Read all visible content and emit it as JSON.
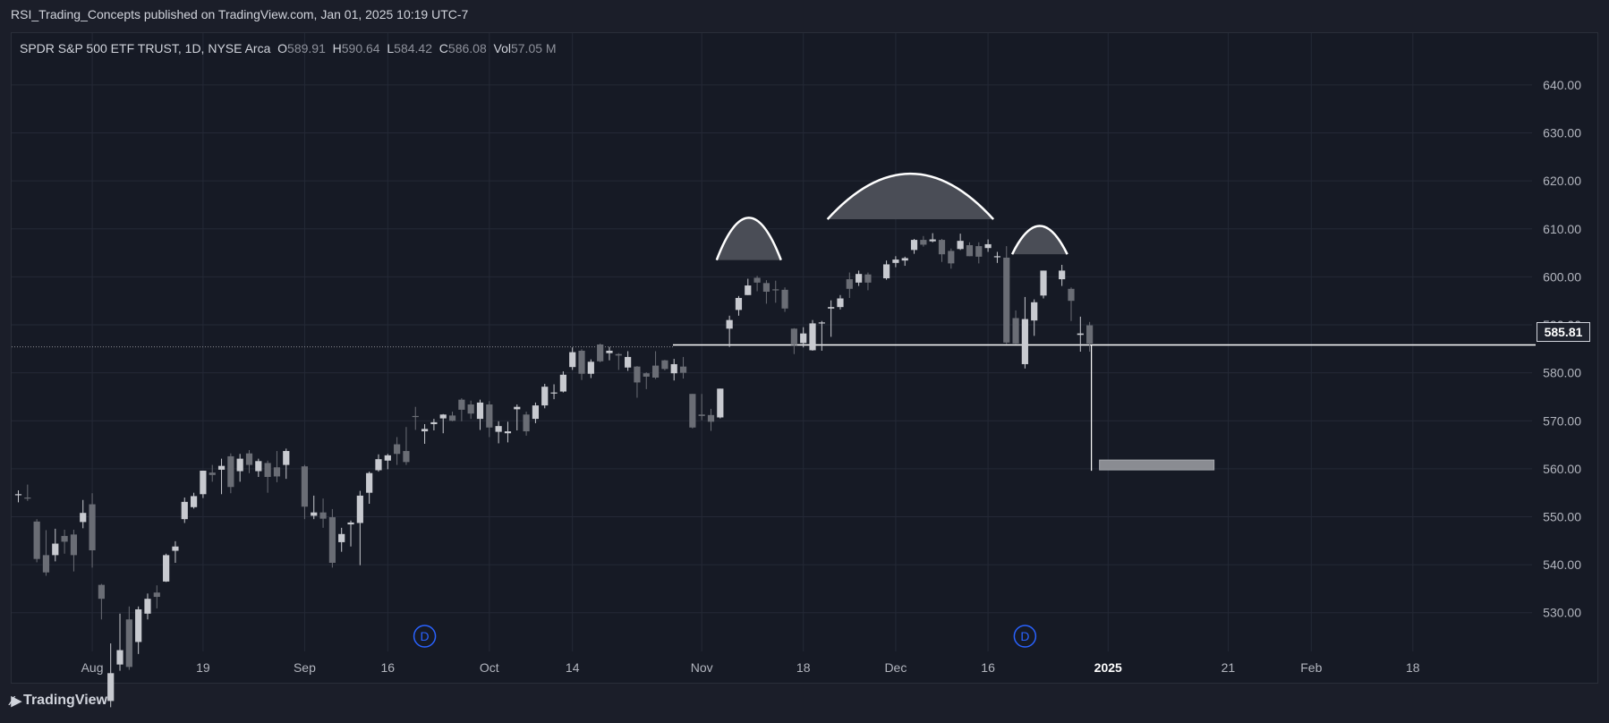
{
  "header": {
    "text": "RSI_Trading_Concepts published on TradingView.com, Jan 01, 2025 10:19 UTC-7"
  },
  "legend": {
    "symbol": "SPDR S&P 500 ETF TRUST, 1D, NYSE Arca",
    "open_label": "O",
    "open": "589.91",
    "high_label": "H",
    "high": "590.64",
    "low_label": "L",
    "low": "584.42",
    "close_label": "C",
    "close": "586.08",
    "vol_label": "Vol",
    "vol": "57.05 M"
  },
  "price_tag": "585.81",
  "footer": {
    "brand": "TradingView"
  },
  "colors": {
    "background": "#161a25",
    "grid": "#242936",
    "axis_text": "#b2b5be",
    "candle_up": "#c8cad0",
    "candle_down": "#6a6d75",
    "event_marker": "#2962ff",
    "pattern_fill": "#4a4d56",
    "pattern_stroke": "#ffffff",
    "projection_box": "#8a8c92"
  },
  "chart_data": {
    "type": "candlestick",
    "timeframe": "1D",
    "ylim": [
      521,
      648
    ],
    "y_ticks": [
      "530.00",
      "540.00",
      "550.00",
      "560.00",
      "570.00",
      "580.00",
      "590.00",
      "600.00",
      "610.00",
      "620.00",
      "630.00",
      "640.00"
    ],
    "x_ticks": [
      {
        "label": "Aug",
        "date": "2024-08-01",
        "bold": false
      },
      {
        "label": "19",
        "date": "2024-08-19",
        "bold": false
      },
      {
        "label": "Sep",
        "date": "2024-09-03",
        "bold": false
      },
      {
        "label": "16",
        "date": "2024-09-16",
        "bold": false
      },
      {
        "label": "Oct",
        "date": "2024-10-01",
        "bold": false
      },
      {
        "label": "14",
        "date": "2024-10-14",
        "bold": false
      },
      {
        "label": "Nov",
        "date": "2024-11-01",
        "bold": false
      },
      {
        "label": "18",
        "date": "2024-11-18",
        "bold": false
      },
      {
        "label": "Dec",
        "date": "2024-12-02",
        "bold": false
      },
      {
        "label": "16",
        "date": "2024-12-16",
        "bold": false
      },
      {
        "label": "2025",
        "date": "2025-01-02",
        "bold": true
      },
      {
        "label": "21",
        "date": "2025-01-21",
        "bold": false
      },
      {
        "label": "Feb",
        "date": "2025-02-03",
        "bold": false
      },
      {
        "label": "18",
        "date": "2025-02-18",
        "bold": false
      }
    ],
    "candles": [
      {
        "date": "2024-07-22",
        "o": 554.5,
        "h": 555.5,
        "l": 553.0,
        "c": 554.7
      },
      {
        "date": "2024-07-23",
        "o": 554.0,
        "h": 556.7,
        "l": 553.3,
        "c": 553.8
      },
      {
        "date": "2024-07-24",
        "o": 549.0,
        "h": 549.5,
        "l": 540.5,
        "c": 541.2
      },
      {
        "date": "2024-07-25",
        "o": 542.0,
        "h": 547.2,
        "l": 537.7,
        "c": 538.4
      },
      {
        "date": "2024-07-26",
        "o": 542.0,
        "h": 547.5,
        "l": 540.7,
        "c": 544.4
      },
      {
        "date": "2024-07-29",
        "o": 546.0,
        "h": 547.3,
        "l": 542.3,
        "c": 544.8
      },
      {
        "date": "2024-07-30",
        "o": 546.3,
        "h": 547.3,
        "l": 538.6,
        "c": 542.0
      },
      {
        "date": "2024-07-31",
        "o": 548.9,
        "h": 553.5,
        "l": 547.6,
        "c": 550.8
      },
      {
        "date": "2024-08-01",
        "o": 552.6,
        "h": 554.9,
        "l": 539.4,
        "c": 543.0
      },
      {
        "date": "2024-08-02",
        "o": 535.8,
        "h": 536.0,
        "l": 528.6,
        "c": 532.9
      },
      {
        "date": "2024-08-05",
        "o": 511.6,
        "h": 523.6,
        "l": 510.3,
        "c": 517.4
      },
      {
        "date": "2024-08-06",
        "o": 519.2,
        "h": 529.8,
        "l": 517.9,
        "c": 522.2
      },
      {
        "date": "2024-08-07",
        "o": 528.6,
        "h": 531.3,
        "l": 518.1,
        "c": 518.7
      },
      {
        "date": "2024-08-08",
        "o": 523.9,
        "h": 531.3,
        "l": 521.4,
        "c": 530.7
      },
      {
        "date": "2024-08-09",
        "o": 529.8,
        "h": 534.0,
        "l": 528.6,
        "c": 532.9
      },
      {
        "date": "2024-08-12",
        "o": 534.2,
        "h": 535.7,
        "l": 530.9,
        "c": 533.3
      },
      {
        "date": "2024-08-13",
        "o": 536.5,
        "h": 542.3,
        "l": 536.4,
        "c": 542.0
      },
      {
        "date": "2024-08-14",
        "o": 542.9,
        "h": 544.9,
        "l": 540.4,
        "c": 543.8
      },
      {
        "date": "2024-08-15",
        "o": 549.5,
        "h": 554.0,
        "l": 548.7,
        "c": 553.1
      },
      {
        "date": "2024-08-16",
        "o": 552.0,
        "h": 555.0,
        "l": 551.7,
        "c": 554.3
      },
      {
        "date": "2024-08-19",
        "o": 554.7,
        "h": 559.6,
        "l": 553.9,
        "c": 559.6
      },
      {
        "date": "2024-08-20",
        "o": 559.2,
        "h": 560.8,
        "l": 557.3,
        "c": 558.7
      },
      {
        "date": "2024-08-21",
        "o": 559.8,
        "h": 562.1,
        "l": 554.7,
        "c": 560.6
      },
      {
        "date": "2024-08-22",
        "o": 562.6,
        "h": 563.2,
        "l": 554.9,
        "c": 556.2
      },
      {
        "date": "2024-08-23",
        "o": 559.5,
        "h": 563.1,
        "l": 557.3,
        "c": 562.1
      },
      {
        "date": "2024-08-26",
        "o": 563.2,
        "h": 563.9,
        "l": 559.1,
        "c": 560.8
      },
      {
        "date": "2024-08-27",
        "o": 559.5,
        "h": 562.1,
        "l": 558.3,
        "c": 561.6
      },
      {
        "date": "2024-08-28",
        "o": 561.2,
        "h": 561.7,
        "l": 555.0,
        "c": 558.3
      },
      {
        "date": "2024-08-29",
        "o": 560.3,
        "h": 563.7,
        "l": 557.2,
        "c": 558.4
      },
      {
        "date": "2024-08-30",
        "o": 560.8,
        "h": 564.2,
        "l": 557.9,
        "c": 563.7
      },
      {
        "date": "2024-09-03",
        "o": 560.5,
        "h": 560.8,
        "l": 549.5,
        "c": 552.1
      },
      {
        "date": "2024-09-04",
        "o": 550.2,
        "h": 554.4,
        "l": 549.5,
        "c": 550.9
      },
      {
        "date": "2024-09-05",
        "o": 550.9,
        "h": 553.8,
        "l": 547.7,
        "c": 549.6
      },
      {
        "date": "2024-09-06",
        "o": 549.9,
        "h": 551.6,
        "l": 539.4,
        "c": 540.4
      },
      {
        "date": "2024-09-09",
        "o": 544.7,
        "h": 547.7,
        "l": 542.7,
        "c": 546.4
      },
      {
        "date": "2024-09-10",
        "o": 548.4,
        "h": 549.2,
        "l": 543.8,
        "c": 548.8
      },
      {
        "date": "2024-09-11",
        "o": 548.7,
        "h": 555.4,
        "l": 539.9,
        "c": 554.4
      },
      {
        "date": "2024-09-12",
        "o": 555.0,
        "h": 559.4,
        "l": 552.7,
        "c": 559.1
      },
      {
        "date": "2024-09-13",
        "o": 559.7,
        "h": 563.0,
        "l": 559.4,
        "c": 562.0
      },
      {
        "date": "2024-09-16",
        "o": 561.7,
        "h": 563.1,
        "l": 559.9,
        "c": 562.8
      },
      {
        "date": "2024-09-17",
        "o": 565.1,
        "h": 566.6,
        "l": 560.8,
        "c": 563.1
      },
      {
        "date": "2024-09-18",
        "o": 563.7,
        "h": 568.7,
        "l": 560.8,
        "c": 561.4
      },
      {
        "date": "2024-09-19",
        "o": 571.0,
        "h": 572.9,
        "l": 568.1,
        "c": 570.9
      },
      {
        "date": "2024-09-20",
        "o": 567.8,
        "h": 569.3,
        "l": 565.2,
        "c": 568.3
      },
      {
        "date": "2024-09-23",
        "o": 569.3,
        "h": 570.4,
        "l": 568.0,
        "c": 569.7
      },
      {
        "date": "2024-09-24",
        "o": 570.5,
        "h": 571.4,
        "l": 567.4,
        "c": 571.3
      },
      {
        "date": "2024-09-25",
        "o": 571.1,
        "h": 571.9,
        "l": 569.9,
        "c": 570.0
      },
      {
        "date": "2024-09-26",
        "o": 574.4,
        "h": 574.7,
        "l": 569.9,
        "c": 572.3
      },
      {
        "date": "2024-09-27",
        "o": 573.4,
        "h": 574.2,
        "l": 570.4,
        "c": 571.5
      },
      {
        "date": "2024-09-30",
        "o": 570.4,
        "h": 574.4,
        "l": 568.1,
        "c": 573.8
      },
      {
        "date": "2024-10-01",
        "o": 573.4,
        "h": 574.1,
        "l": 566.6,
        "c": 568.6
      },
      {
        "date": "2024-10-02",
        "o": 567.7,
        "h": 569.9,
        "l": 565.3,
        "c": 568.9
      },
      {
        "date": "2024-10-03",
        "o": 567.4,
        "h": 569.8,
        "l": 565.5,
        "c": 567.8
      },
      {
        "date": "2024-10-04",
        "o": 572.4,
        "h": 573.4,
        "l": 568.0,
        "c": 572.9
      },
      {
        "date": "2024-10-07",
        "o": 571.3,
        "h": 571.9,
        "l": 566.9,
        "c": 567.8
      },
      {
        "date": "2024-10-08",
        "o": 570.4,
        "h": 573.8,
        "l": 569.5,
        "c": 573.2
      },
      {
        "date": "2024-10-09",
        "o": 573.2,
        "h": 577.7,
        "l": 572.6,
        "c": 577.1
      },
      {
        "date": "2024-10-10",
        "o": 575.8,
        "h": 577.6,
        "l": 574.5,
        "c": 575.9
      },
      {
        "date": "2024-10-11",
        "o": 576.1,
        "h": 580.3,
        "l": 575.9,
        "c": 579.6
      },
      {
        "date": "2024-10-14",
        "o": 581.2,
        "h": 585.3,
        "l": 580.6,
        "c": 584.3
      },
      {
        "date": "2024-10-15",
        "o": 584.6,
        "h": 584.9,
        "l": 578.5,
        "c": 579.8
      },
      {
        "date": "2024-10-16",
        "o": 579.8,
        "h": 582.8,
        "l": 578.9,
        "c": 582.3
      },
      {
        "date": "2024-10-17",
        "o": 585.9,
        "h": 586.1,
        "l": 582.2,
        "c": 582.4
      },
      {
        "date": "2024-10-18",
        "o": 584.1,
        "h": 585.4,
        "l": 582.6,
        "c": 584.6
      },
      {
        "date": "2024-10-21",
        "o": 583.9,
        "h": 584.1,
        "l": 580.6,
        "c": 583.6
      },
      {
        "date": "2024-10-22",
        "o": 581.1,
        "h": 584.5,
        "l": 580.4,
        "c": 583.3
      },
      {
        "date": "2024-10-23",
        "o": 581.3,
        "h": 581.4,
        "l": 574.8,
        "c": 577.99
      },
      {
        "date": "2024-10-24",
        "o": 579.9,
        "h": 580.1,
        "l": 576.6,
        "c": 579.2
      },
      {
        "date": "2024-10-25",
        "o": 581.5,
        "h": 584.5,
        "l": 578.7,
        "c": 579.0
      },
      {
        "date": "2024-10-28",
        "o": 582.6,
        "h": 582.7,
        "l": 580.5,
        "c": 580.8
      },
      {
        "date": "2024-10-29",
        "o": 579.9,
        "h": 582.9,
        "l": 578.4,
        "c": 581.8
      },
      {
        "date": "2024-10-30",
        "o": 581.3,
        "h": 583.3,
        "l": 578.8,
        "c": 580.0
      },
      {
        "date": "2024-10-31",
        "o": 575.6,
        "h": 575.6,
        "l": 568.4,
        "c": 568.6
      },
      {
        "date": "2024-11-01",
        "o": 571.3,
        "h": 575.6,
        "l": 570.1,
        "c": 571.0
      },
      {
        "date": "2024-11-04",
        "o": 571.2,
        "h": 572.5,
        "l": 567.9,
        "c": 569.8
      },
      {
        "date": "2024-11-05",
        "o": 570.7,
        "h": 576.7,
        "l": 570.5,
        "c": 576.7
      },
      {
        "date": "2024-11-06",
        "o": 589.2,
        "h": 591.9,
        "l": 585.4,
        "c": 591.0
      },
      {
        "date": "2024-11-07",
        "o": 593.1,
        "h": 596.0,
        "l": 591.9,
        "c": 595.6
      },
      {
        "date": "2024-11-08",
        "o": 596.2,
        "h": 599.6,
        "l": 596.2,
        "c": 598.2
      },
      {
        "date": "2024-11-11",
        "o": 599.8,
        "h": 600.2,
        "l": 597.0,
        "c": 598.8
      },
      {
        "date": "2024-11-12",
        "o": 598.7,
        "h": 599.3,
        "l": 594.4,
        "c": 596.9
      },
      {
        "date": "2024-11-13",
        "o": 597.4,
        "h": 599.2,
        "l": 594.6,
        "c": 597.2
      },
      {
        "date": "2024-11-14",
        "o": 597.3,
        "h": 597.8,
        "l": 592.7,
        "c": 593.4
      },
      {
        "date": "2024-11-15",
        "o": 589.2,
        "h": 589.3,
        "l": 583.9,
        "c": 585.8
      },
      {
        "date": "2024-11-18",
        "o": 586.2,
        "h": 589.5,
        "l": 585.3,
        "c": 588.2
      },
      {
        "date": "2024-11-19",
        "o": 584.7,
        "h": 591.0,
        "l": 584.6,
        "c": 590.3
      },
      {
        "date": "2024-11-20",
        "o": 590.4,
        "h": 590.8,
        "l": 584.6,
        "c": 590.5
      },
      {
        "date": "2024-11-21",
        "o": 593.4,
        "h": 595.1,
        "l": 587.5,
        "c": 593.7
      },
      {
        "date": "2024-11-22",
        "o": 593.7,
        "h": 596.2,
        "l": 593.2,
        "c": 595.5
      },
      {
        "date": "2024-11-25",
        "o": 599.5,
        "h": 600.9,
        "l": 595.6,
        "c": 597.5
      },
      {
        "date": "2024-11-26",
        "o": 598.8,
        "h": 601.3,
        "l": 598.1,
        "c": 600.6
      },
      {
        "date": "2024-11-27",
        "o": 600.5,
        "h": 600.9,
        "l": 597.2,
        "c": 598.8
      },
      {
        "date": "2024-11-29",
        "o": 599.7,
        "h": 603.4,
        "l": 599.4,
        "c": 602.6
      },
      {
        "date": "2024-12-02",
        "o": 602.9,
        "h": 604.3,
        "l": 602.0,
        "c": 603.6
      },
      {
        "date": "2024-12-03",
        "o": 603.4,
        "h": 604.2,
        "l": 602.3,
        "c": 603.9
      },
      {
        "date": "2024-12-04",
        "o": 605.6,
        "h": 607.9,
        "l": 604.8,
        "c": 607.7
      },
      {
        "date": "2024-12-05",
        "o": 607.7,
        "h": 608.5,
        "l": 606.3,
        "c": 606.7
      },
      {
        "date": "2024-12-06",
        "o": 607.4,
        "h": 609.1,
        "l": 607.2,
        "c": 607.8
      },
      {
        "date": "2024-12-09",
        "o": 607.7,
        "h": 607.9,
        "l": 603.1,
        "c": 604.7
      },
      {
        "date": "2024-12-10",
        "o": 605.4,
        "h": 605.9,
        "l": 601.7,
        "c": 602.8
      },
      {
        "date": "2024-12-11",
        "o": 605.8,
        "h": 609.0,
        "l": 605.6,
        "c": 607.5
      },
      {
        "date": "2024-12-12",
        "o": 606.6,
        "h": 607.2,
        "l": 604.3,
        "c": 604.3
      },
      {
        "date": "2024-12-13",
        "o": 606.4,
        "h": 607.2,
        "l": 602.8,
        "c": 604.2
      },
      {
        "date": "2024-12-16",
        "o": 606.0,
        "h": 607.8,
        "l": 605.2,
        "c": 606.8
      },
      {
        "date": "2024-12-17",
        "o": 604.2,
        "h": 605.2,
        "l": 602.9,
        "c": 604.3
      },
      {
        "date": "2024-12-18",
        "o": 604.0,
        "h": 606.4,
        "l": 585.9,
        "c": 586.3
      },
      {
        "date": "2024-12-19",
        "o": 591.4,
        "h": 593.0,
        "l": 585.9,
        "c": 586.1
      },
      {
        "date": "2024-12-20",
        "o": 581.8,
        "h": 595.8,
        "l": 580.9,
        "c": 591.2
      },
      {
        "date": "2024-12-23",
        "o": 590.9,
        "h": 595.3,
        "l": 587.7,
        "c": 594.7
      },
      {
        "date": "2024-12-24",
        "o": 596.1,
        "h": 601.3,
        "l": 595.5,
        "c": 601.3
      },
      {
        "date": "2024-12-26",
        "o": 599.5,
        "h": 602.5,
        "l": 598.1,
        "c": 601.3
      },
      {
        "date": "2024-12-27",
        "o": 597.5,
        "h": 597.8,
        "l": 590.8,
        "c": 595.0
      },
      {
        "date": "2024-12-30",
        "o": 587.9,
        "h": 591.7,
        "l": 584.4,
        "c": 588.2
      },
      {
        "date": "2024-12-31",
        "o": 589.9,
        "h": 590.6,
        "l": 584.4,
        "c": 586.1
      }
    ],
    "neckline_price": 585.81,
    "current_price_label": "585.81",
    "projection_target_price": 560.7,
    "event_markers": [
      {
        "date": "2024-09-20",
        "label": "D"
      },
      {
        "date": "2024-12-20",
        "label": "D"
      }
    ],
    "pattern": "head-and-shoulders",
    "pattern_arcs": [
      {
        "start": "2024-11-05",
        "end": "2024-11-13",
        "base_price": 603.5,
        "peak_price": 612.3
      },
      {
        "start": "2024-11-21",
        "end": "2024-12-16",
        "base_price": 612.0,
        "peak_price": 621.5
      },
      {
        "start": "2024-12-19",
        "end": "2024-12-26",
        "base_price": 604.7,
        "peak_price": 610.6
      }
    ]
  }
}
